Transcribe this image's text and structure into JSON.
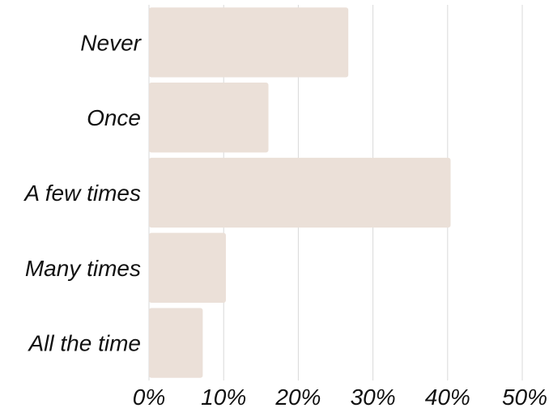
{
  "chart_data": {
    "type": "bar",
    "orientation": "horizontal",
    "categories": [
      "Never",
      "Once",
      "A few times",
      "Many times",
      "All the time"
    ],
    "values": [
      26.7,
      16.0,
      40.4,
      10.3,
      7.2
    ],
    "xticks": [
      "0%",
      "10%",
      "20%",
      "30%",
      "40%",
      "50%"
    ],
    "xlim": [
      0,
      50
    ],
    "grid": "vertical",
    "bar_color": "#ebe0d8",
    "title": "",
    "xlabel": "",
    "ylabel": ""
  }
}
